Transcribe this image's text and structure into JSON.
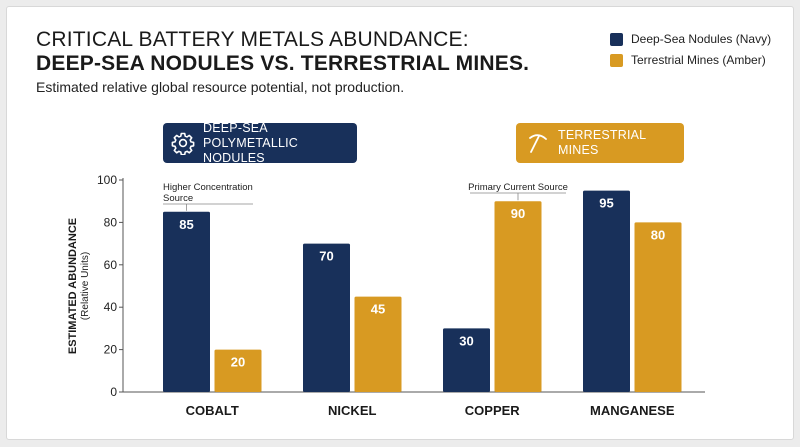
{
  "header": {
    "title_line1": "CRITICAL BATTERY METALS ABUNDANCE:",
    "title_line2": "DEEP-SEA NODULES VS. TERRESTRIAL MINES.",
    "subtitle": "Estimated relative global resource potential, not production."
  },
  "legend": {
    "items": [
      {
        "label": "Deep-Sea Nodules (Navy)",
        "color": "#18305a"
      },
      {
        "label": "Terrestrial Mines (Amber)",
        "color": "#d89a22"
      }
    ]
  },
  "tags": {
    "nodules": {
      "label": "DEEP-SEA POLYMETALLIC NODULES",
      "icon": "gear-icon"
    },
    "mines": {
      "label": "TERRESTRIAL MINES",
      "icon": "pickaxe-icon"
    }
  },
  "chart_data": {
    "type": "bar",
    "categories": [
      "COBALT",
      "NICKEL",
      "COPPER",
      "MANGANESE"
    ],
    "series": [
      {
        "name": "Deep-Sea Nodules (Navy)",
        "color": "#18305a",
        "values": [
          85,
          70,
          30,
          95
        ]
      },
      {
        "name": "Terrestrial Mines (Amber)",
        "color": "#d89a22",
        "values": [
          20,
          45,
          90,
          80
        ]
      }
    ],
    "ylabel": "ESTIMATED ABUNDANCE",
    "ylabel_sub": "(Relative Units)",
    "ylim": [
      0,
      100
    ],
    "yticks": [
      0,
      20,
      40,
      60,
      80,
      100
    ],
    "grid": false,
    "legend_position": "top-right",
    "annotations": [
      {
        "text": "Higher Concentration Source",
        "category": "COBALT",
        "series": 0
      },
      {
        "text": "Primary Current Source",
        "category": "COPPER",
        "series": 1
      }
    ]
  }
}
